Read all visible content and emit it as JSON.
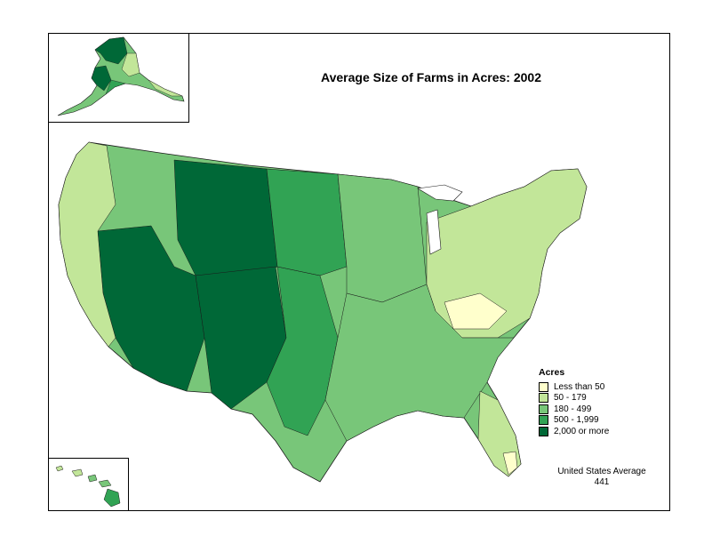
{
  "title": "Average Size of Farms in Acres:  2002",
  "legend": {
    "title": "Acres",
    "items": [
      {
        "label": "Less than 50",
        "color": "#ffffcc"
      },
      {
        "label": "50 - 179",
        "color": "#c2e699"
      },
      {
        "label": "180 - 499",
        "color": "#78c679"
      },
      {
        "label": "500 - 1,999",
        "color": "#31a354"
      },
      {
        "label": "2,000 or more",
        "color": "#006837"
      }
    ]
  },
  "us_average": {
    "label": "United States Average",
    "value": "441"
  },
  "map": {
    "regions_shown": [
      "Alaska",
      "Hawaii",
      "Contiguous United States"
    ],
    "dominant_classes": {
      "great_plains_and_west": "2,000 or more",
      "midwest": "180 - 499",
      "appalachia_and_northeast": "50 - 179",
      "florida_south": "Less than 50"
    }
  }
}
